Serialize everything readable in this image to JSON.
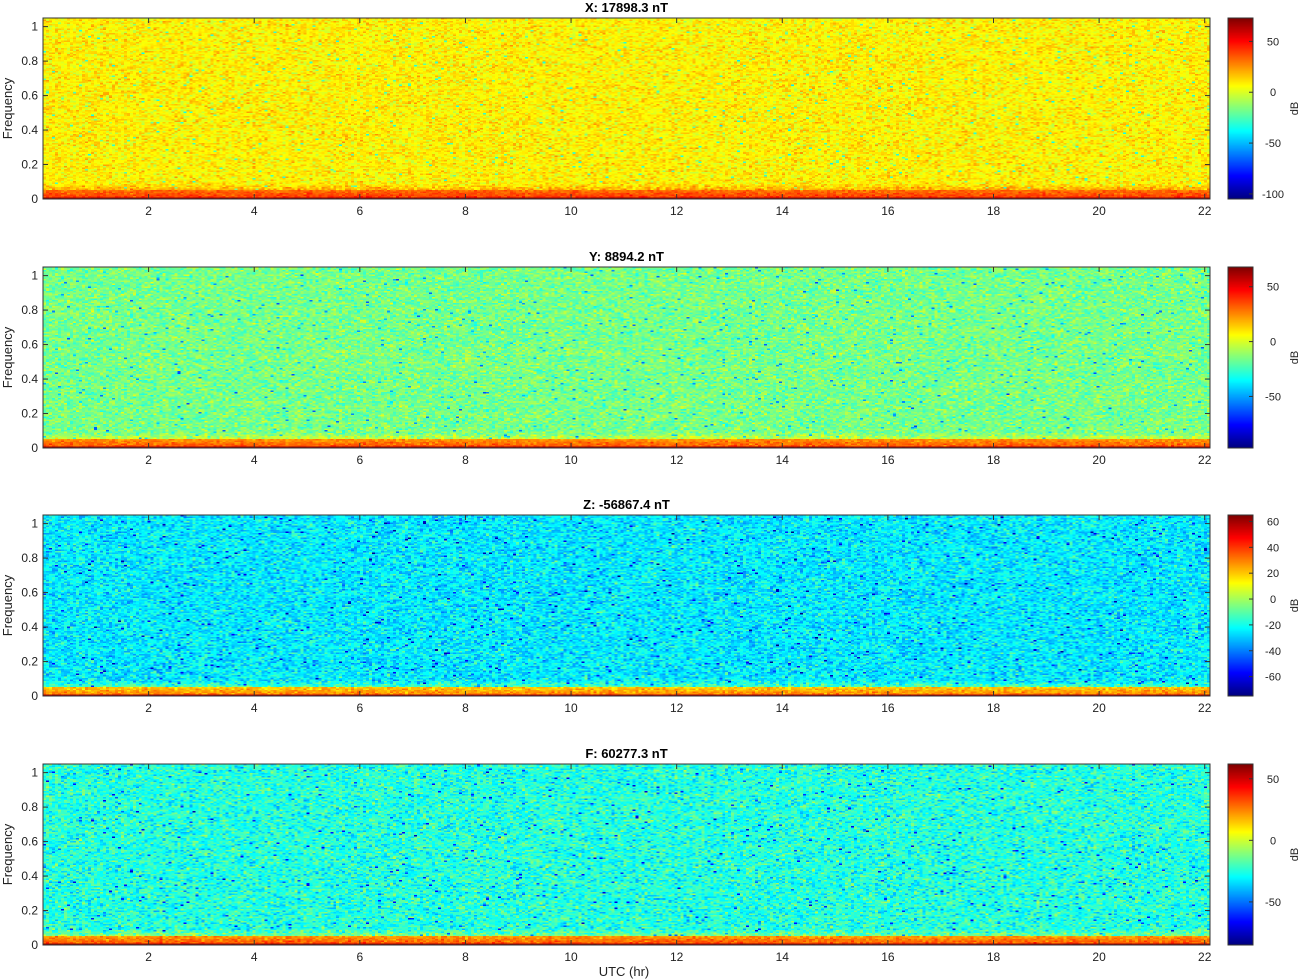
{
  "figure": {
    "xlabel": "UTC (hr)"
  },
  "chart_data": [
    {
      "type": "heatmap",
      "title": "X: 17898.3 nT",
      "ylabel": "Frequency",
      "xlim": [
        0,
        22.1
      ],
      "ylim": [
        0,
        1.05
      ],
      "x_ticks": [
        2,
        4,
        6,
        8,
        10,
        12,
        14,
        16,
        18,
        20,
        22
      ],
      "y_ticks": [
        0,
        0.2,
        0.4,
        0.6,
        0.8,
        1
      ],
      "colorbar": {
        "label": "dB",
        "min": -105,
        "max": 73,
        "ticks": [
          50,
          0,
          -50,
          -100
        ]
      },
      "noise_level_db": 8,
      "noise_spread_db": 9,
      "low_freq_level_db": 30,
      "base_level_db": 72
    },
    {
      "type": "heatmap",
      "title": "Y: 8894.2 nT",
      "ylabel": "Frequency",
      "xlim": [
        0,
        22.1
      ],
      "ylim": [
        0,
        1.05
      ],
      "x_ticks": [
        2,
        4,
        6,
        8,
        10,
        12,
        14,
        16,
        18,
        20,
        22
      ],
      "y_ticks": [
        0,
        0.2,
        0.4,
        0.6,
        0.8,
        1
      ],
      "colorbar": {
        "label": "dB",
        "min": -97,
        "max": 68,
        "ticks": [
          50,
          0,
          -50
        ]
      },
      "noise_level_db": -16,
      "noise_spread_db": 10,
      "low_freq_level_db": 22,
      "base_level_db": 66
    },
    {
      "type": "heatmap",
      "title": "Z: -56867.4 nT",
      "ylabel": "Frequency",
      "xlim": [
        0,
        22.1
      ],
      "ylim": [
        0,
        1.05
      ],
      "x_ticks": [
        2,
        4,
        6,
        8,
        10,
        12,
        14,
        16,
        18,
        20,
        22
      ],
      "y_ticks": [
        0,
        0.2,
        0.4,
        0.6,
        0.8,
        1
      ],
      "colorbar": {
        "label": "dB",
        "min": -75,
        "max": 65,
        "ticks": [
          60,
          40,
          20,
          0,
          -20,
          -40,
          -60
        ]
      },
      "noise_level_db": -25,
      "noise_spread_db": 10,
      "low_freq_level_db": 18,
      "base_level_db": 62
    },
    {
      "type": "heatmap",
      "title": "F: 60277.3 nT",
      "ylabel": "Frequency",
      "xlim": [
        0,
        22.1
      ],
      "ylim": [
        0,
        1.05
      ],
      "x_ticks": [
        2,
        4,
        6,
        8,
        10,
        12,
        14,
        16,
        18,
        20,
        22
      ],
      "y_ticks": [
        0,
        0.2,
        0.4,
        0.6,
        0.8,
        1
      ],
      "colorbar": {
        "label": "dB",
        "min": -85,
        "max": 62,
        "ticks": [
          50,
          0,
          -50
        ]
      },
      "noise_level_db": -25,
      "noise_spread_db": 11,
      "low_freq_level_db": 20,
      "base_level_db": 60
    }
  ]
}
